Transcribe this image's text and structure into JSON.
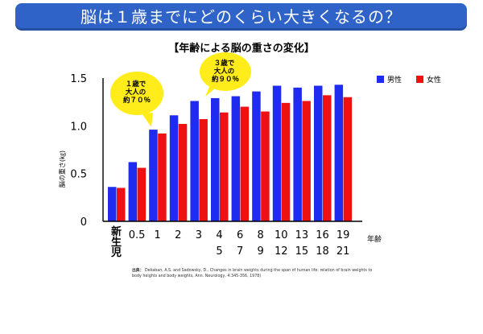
{
  "header": {
    "title": "脳は１歳までにどのくらい大きくなるの？"
  },
  "chart_data": {
    "type": "bar",
    "title": "【年齢による脳の重さの変化】",
    "xlabel": "年齢",
    "ylabel": "脳の重さ(㎏)",
    "categories": [
      "新生児",
      "0.5",
      "1",
      "2",
      "3",
      "4 5",
      "6 7",
      "8 9",
      "10 12",
      "13 15",
      "16 18",
      "19 21"
    ],
    "ylim": [
      0,
      1.5
    ],
    "yticks": [
      "0",
      "0.5",
      "1.0",
      "1.5"
    ],
    "grid": false,
    "legend_position": "top-right",
    "series": [
      {
        "name": "男性",
        "color": "#1f2cf0",
        "values": [
          0.36,
          0.62,
          0.96,
          1.11,
          1.26,
          1.29,
          1.31,
          1.36,
          1.42,
          1.4,
          1.42,
          1.43
        ]
      },
      {
        "name": "女性",
        "color": "#ee1111",
        "values": [
          0.35,
          0.56,
          0.92,
          1.02,
          1.07,
          1.14,
          1.2,
          1.15,
          1.24,
          1.26,
          1.32,
          1.3
        ]
      }
    ],
    "annotations": [
      {
        "label": "１歳で 大人の 約７０％"
      },
      {
        "label": "３歳で 大人の 約９０％"
      }
    ]
  },
  "source": {
    "label": "出典：",
    "text": "Dekaban, A.S. and Sadowsky, D., Changes in brain weights during the span of human life: relation of brain weights to body heights and body weights, Ann. Neurology, 4:345-356, 1978)"
  }
}
